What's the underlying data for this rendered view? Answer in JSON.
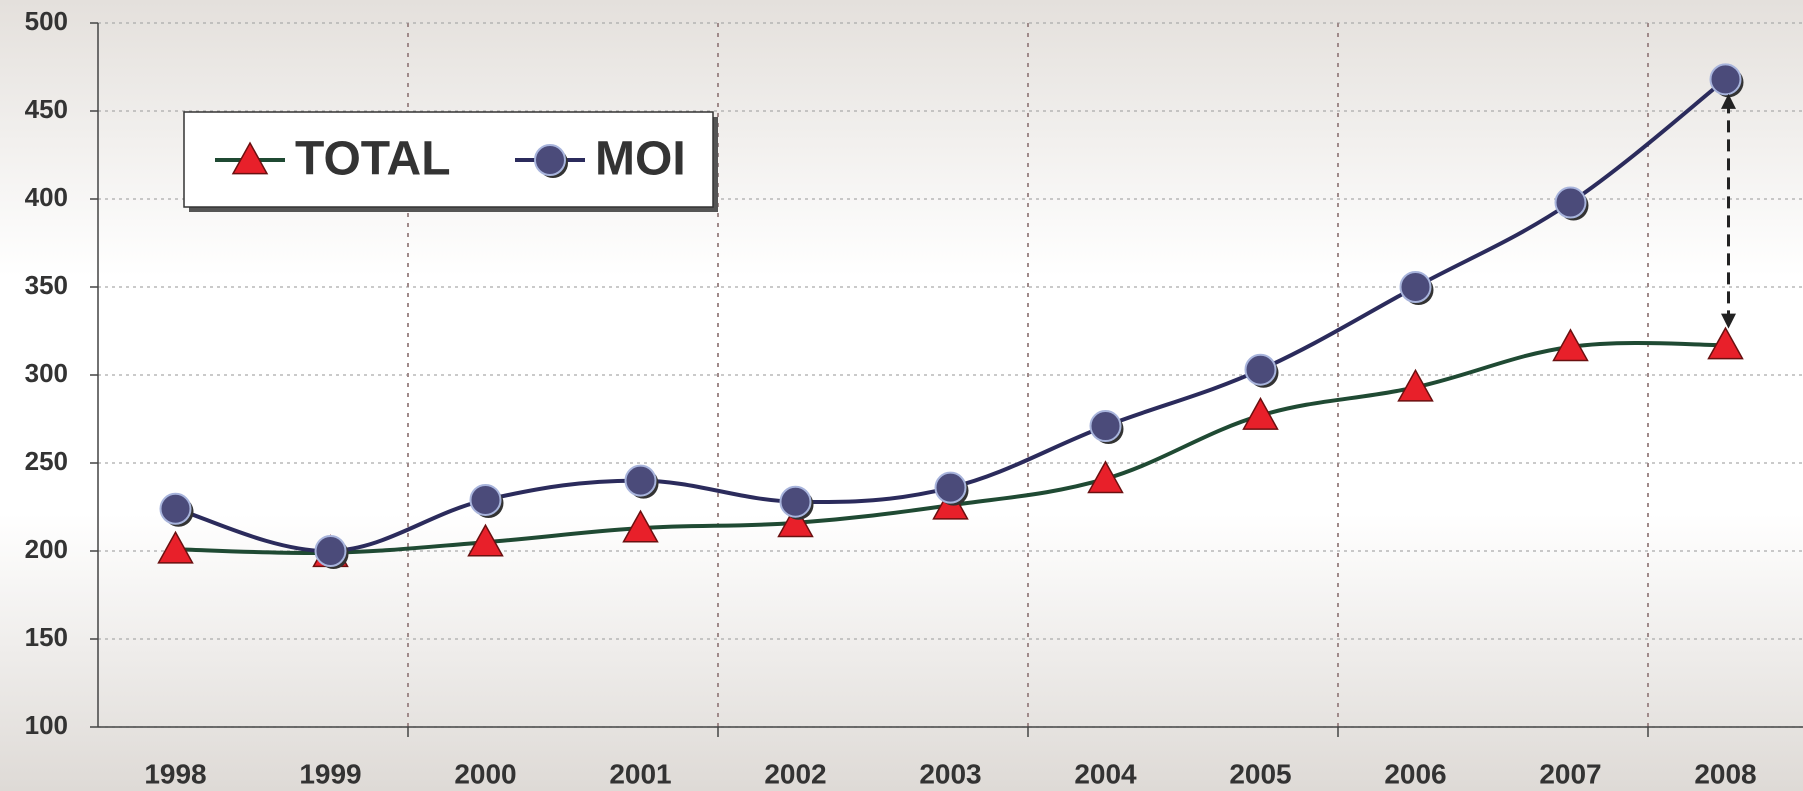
{
  "chart_data": {
    "type": "line",
    "categories": [
      "1998",
      "1999",
      "2000",
      "2001",
      "2002",
      "2003",
      "2004",
      "2005",
      "2006",
      "2007",
      "2008"
    ],
    "series": [
      {
        "name": "TOTAL",
        "color": "#1f4a33",
        "marker_color": "#e8202a",
        "marker": "triangle",
        "values": [
          201,
          199,
          205,
          213,
          216,
          226,
          241,
          277,
          293,
          316,
          317
        ]
      },
      {
        "name": "MOI",
        "color": "#2b2b5c",
        "marker_color": "#4b4b7a",
        "marker": "circle",
        "values": [
          224,
          200,
          229,
          240,
          228,
          236,
          271,
          303,
          350,
          398,
          468
        ]
      }
    ],
    "ylim": [
      100,
      500
    ],
    "yticks": [
      100,
      150,
      200,
      250,
      300,
      350,
      400,
      450,
      500
    ],
    "grid": true
  }
}
